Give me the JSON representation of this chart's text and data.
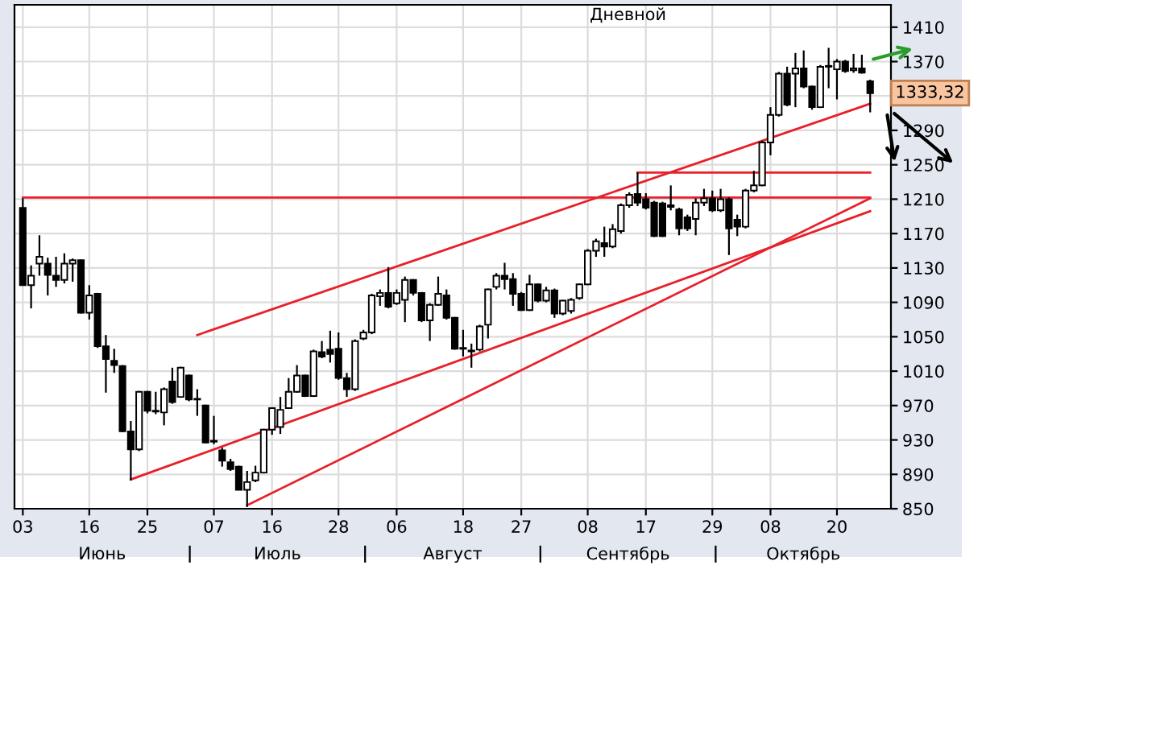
{
  "chart_data": {
    "type": "candlestick",
    "title": "Дневной",
    "categories": [
      "03",
      null,
      null,
      null,
      null,
      null,
      null,
      null,
      "16",
      null,
      null,
      null,
      null,
      null,
      null,
      "25",
      null,
      null,
      null,
      null,
      null,
      null,
      null,
      "07",
      null,
      null,
      null,
      null,
      null,
      null,
      "16",
      null,
      null,
      null,
      null,
      null,
      null,
      null,
      "28",
      null,
      null,
      null,
      null,
      null,
      null,
      "06",
      null,
      null,
      null,
      null,
      null,
      null,
      null,
      "18",
      null,
      null,
      null,
      null,
      null,
      null,
      "27",
      null,
      null,
      null,
      null,
      null,
      null,
      null,
      "08",
      null,
      null,
      null,
      null,
      null,
      null,
      "17",
      null,
      null,
      null,
      null,
      null,
      null,
      null,
      "29",
      null,
      null,
      null,
      null,
      null,
      null,
      "08",
      null,
      null,
      null,
      null,
      null,
      null,
      null,
      "20",
      null,
      null,
      null,
      null
    ],
    "ohlc": [
      [
        1200,
        1211,
        1110,
        1110
      ],
      [
        1110,
        1133,
        1083,
        1121
      ],
      [
        1135,
        1168,
        1121,
        1143
      ],
      [
        1135,
        1142,
        1098,
        1122
      ],
      [
        1121,
        1143,
        1108,
        1116
      ],
      [
        1116,
        1147,
        1112,
        1135
      ],
      [
        1135,
        1141,
        1114,
        1139
      ],
      [
        1139,
        1140,
        1077,
        1078
      ],
      [
        1078,
        1110,
        1070,
        1098
      ],
      [
        1100,
        1101,
        1037,
        1039
      ],
      [
        1039,
        1052,
        985,
        1024
      ],
      [
        1022,
        1036,
        1008,
        1017
      ],
      [
        1016,
        1017,
        939,
        940
      ],
      [
        940,
        952,
        883,
        919
      ],
      [
        919,
        987,
        917,
        986
      ],
      [
        986,
        987,
        961,
        964
      ],
      [
        963,
        986,
        960,
        964
      ],
      [
        962,
        991,
        947,
        989
      ],
      [
        998,
        1014,
        972,
        974
      ],
      [
        980,
        1015,
        979,
        1014
      ],
      [
        1005,
        1006,
        975,
        977
      ],
      [
        977,
        989,
        958,
        977
      ],
      [
        970,
        971,
        926,
        927
      ],
      [
        928,
        958,
        925,
        929
      ],
      [
        918,
        921,
        899,
        906
      ],
      [
        904,
        908,
        894,
        896
      ],
      [
        899,
        900,
        872,
        872
      ],
      [
        872,
        894,
        852,
        881
      ],
      [
        883,
        900,
        881,
        892
      ],
      [
        892,
        943,
        891,
        942
      ],
      [
        942,
        968,
        936,
        967
      ],
      [
        945,
        980,
        937,
        965
      ],
      [
        967,
        1002,
        966,
        986
      ],
      [
        986,
        1017,
        985,
        1005
      ],
      [
        1005,
        1006,
        980,
        981
      ],
      [
        981,
        1035,
        980,
        1033
      ],
      [
        1032,
        1045,
        1025,
        1027
      ],
      [
        1035,
        1057,
        1020,
        1030
      ],
      [
        1036,
        1055,
        1000,
        1002
      ],
      [
        1002,
        1008,
        980,
        989
      ],
      [
        989,
        1047,
        987,
        1045
      ],
      [
        1048,
        1058,
        1046,
        1055
      ],
      [
        1055,
        1100,
        1053,
        1098
      ],
      [
        1097,
        1105,
        1086,
        1101
      ],
      [
        1101,
        1131,
        1083,
        1085
      ],
      [
        1089,
        1105,
        1087,
        1101
      ],
      [
        1093,
        1120,
        1067,
        1116
      ],
      [
        1116,
        1117,
        1098,
        1101
      ],
      [
        1101,
        1102,
        1067,
        1069
      ],
      [
        1069,
        1089,
        1045,
        1087
      ],
      [
        1087,
        1120,
        1086,
        1100
      ],
      [
        1098,
        1105,
        1070,
        1072
      ],
      [
        1072,
        1073,
        1035,
        1036
      ],
      [
        1036,
        1058,
        1027,
        1037
      ],
      [
        1034,
        1042,
        1014,
        1033
      ],
      [
        1035,
        1064,
        1033,
        1062
      ],
      [
        1064,
        1106,
        1048,
        1105
      ],
      [
        1108,
        1124,
        1105,
        1121
      ],
      [
        1121,
        1136,
        1105,
        1117
      ],
      [
        1117,
        1124,
        1086,
        1100
      ],
      [
        1100,
        1102,
        1080,
        1081
      ],
      [
        1081,
        1122,
        1080,
        1111
      ],
      [
        1111,
        1112,
        1090,
        1092
      ],
      [
        1092,
        1108,
        1090,
        1104
      ],
      [
        1104,
        1106,
        1072,
        1077
      ],
      [
        1077,
        1093,
        1075,
        1092
      ],
      [
        1080,
        1095,
        1077,
        1093
      ],
      [
        1095,
        1112,
        1093,
        1111
      ],
      [
        1111,
        1152,
        1110,
        1150
      ],
      [
        1150,
        1164,
        1143,
        1161
      ],
      [
        1159,
        1178,
        1143,
        1155
      ],
      [
        1155,
        1181,
        1153,
        1175
      ],
      [
        1173,
        1205,
        1170,
        1203
      ],
      [
        1203,
        1218,
        1200,
        1215
      ],
      [
        1216,
        1241,
        1202,
        1206
      ],
      [
        1210,
        1217,
        1198,
        1200
      ],
      [
        1206,
        1208,
        1166,
        1167
      ],
      [
        1205,
        1207,
        1166,
        1167
      ],
      [
        1201,
        1226,
        1197,
        1203
      ],
      [
        1198,
        1200,
        1168,
        1176
      ],
      [
        1189,
        1192,
        1173,
        1176
      ],
      [
        1187,
        1211,
        1168,
        1206
      ],
      [
        1206,
        1222,
        1202,
        1211
      ],
      [
        1211,
        1220,
        1195,
        1197
      ],
      [
        1197,
        1222,
        1195,
        1210
      ],
      [
        1210,
        1212,
        1145,
        1176
      ],
      [
        1186,
        1192,
        1167,
        1178
      ],
      [
        1178,
        1222,
        1176,
        1220
      ],
      [
        1220,
        1243,
        1218,
        1226
      ],
      [
        1226,
        1278,
        1225,
        1276
      ],
      [
        1276,
        1317,
        1261,
        1308
      ],
      [
        1308,
        1358,
        1306,
        1356
      ],
      [
        1356,
        1364,
        1318,
        1320
      ],
      [
        1356,
        1380,
        1317,
        1362
      ],
      [
        1362,
        1383,
        1339,
        1341
      ],
      [
        1341,
        1342,
        1314,
        1317
      ],
      [
        1317,
        1366,
        1316,
        1364
      ],
      [
        1364,
        1386,
        1339,
        1365
      ],
      [
        1361,
        1373,
        1326,
        1370
      ],
      [
        1370,
        1372,
        1357,
        1359
      ],
      [
        1360,
        1379,
        1357,
        1362
      ],
      [
        1362,
        1378,
        1356,
        1357
      ],
      [
        1347,
        1349,
        1311,
        1333.32
      ]
    ],
    "series": [
      {
        "type": "line",
        "color": "#e8202a",
        "values": [
          null,
          null,
          null,
          null,
          null,
          null,
          null,
          null,
          null,
          null,
          null,
          null,
          null,
          null,
          null,
          null,
          null,
          null,
          null,
          null,
          null,
          1052,
          null,
          null,
          null,
          null,
          null,
          null,
          null,
          null,
          null,
          null,
          null,
          null,
          null,
          null,
          null,
          null,
          null,
          null,
          null,
          null,
          null,
          null,
          null,
          null,
          null,
          null,
          null,
          null,
          null,
          null,
          null,
          null,
          null,
          null,
          null,
          null,
          null,
          null,
          null,
          null,
          null,
          null,
          null,
          null,
          null,
          null,
          null,
          null,
          null,
          null,
          null,
          null,
          null,
          null,
          null,
          null,
          null,
          null,
          null,
          null,
          null,
          null,
          null,
          null,
          null,
          null,
          null,
          null,
          null,
          null,
          null,
          null,
          null,
          null,
          null,
          null,
          null,
          null,
          null,
          null,
          1321
        ]
      },
      {
        "type": "line",
        "color": "#e8202a",
        "values": [
          null,
          null,
          null,
          null,
          null,
          null,
          null,
          null,
          null,
          null,
          null,
          null,
          null,
          884,
          null,
          null,
          null,
          null,
          null,
          null,
          null,
          null,
          null,
          null,
          null,
          null,
          null,
          null,
          null,
          null,
          null,
          null,
          null,
          null,
          null,
          null,
          null,
          null,
          null,
          null,
          null,
          null,
          null,
          null,
          null,
          null,
          null,
          null,
          null,
          null,
          null,
          null,
          null,
          null,
          null,
          null,
          null,
          null,
          null,
          null,
          null,
          null,
          null,
          null,
          null,
          null,
          null,
          null,
          null,
          null,
          null,
          null,
          null,
          null,
          null,
          null,
          null,
          null,
          null,
          null,
          null,
          null,
          null,
          null,
          null,
          null,
          null,
          null,
          null,
          null,
          null,
          null,
          null,
          null,
          null,
          null,
          null,
          null,
          null,
          null,
          null,
          null,
          1196
        ]
      },
      {
        "type": "line",
        "color": "#e8202a",
        "values": [
          null,
          null,
          null,
          null,
          null,
          null,
          null,
          null,
          null,
          null,
          null,
          null,
          null,
          null,
          null,
          null,
          null,
          null,
          null,
          null,
          null,
          null,
          null,
          null,
          null,
          null,
          null,
          854,
          null,
          null,
          null,
          null,
          null,
          null,
          null,
          null,
          null,
          null,
          null,
          null,
          null,
          null,
          null,
          null,
          null,
          null,
          null,
          null,
          null,
          null,
          null,
          null,
          null,
          null,
          null,
          null,
          null,
          null,
          null,
          null,
          null,
          null,
          null,
          null,
          null,
          null,
          null,
          null,
          null,
          null,
          null,
          null,
          null,
          null,
          null,
          null,
          null,
          null,
          null,
          null,
          null,
          null,
          null,
          null,
          null,
          null,
          null,
          null,
          null,
          null,
          null,
          null,
          null,
          null,
          null,
          null,
          null,
          null,
          null,
          null,
          null,
          null,
          1211
        ]
      },
      {
        "type": "line",
        "color": "#e8202a",
        "values": [
          null,
          null,
          null,
          null,
          null,
          null,
          null,
          null,
          null,
          null,
          null,
          null,
          null,
          null,
          null,
          null,
          null,
          null,
          null,
          null,
          null,
          null,
          null,
          null,
          null,
          null,
          null,
          null,
          null,
          null,
          null,
          null,
          null,
          null,
          null,
          null,
          null,
          null,
          null,
          null,
          null,
          null,
          null,
          null,
          null,
          null,
          null,
          null,
          null,
          null,
          null,
          null,
          null,
          null,
          null,
          null,
          null,
          null,
          null,
          null,
          null,
          null,
          null,
          null,
          null,
          null,
          null,
          null,
          null,
          null,
          null,
          null,
          null,
          null,
          1241,
          null,
          null,
          null,
          null,
          null,
          null,
          null,
          null,
          null,
          null,
          null,
          null,
          null,
          null,
          null,
          null,
          null,
          null,
          null,
          null,
          null,
          null,
          null,
          null,
          null,
          null,
          null,
          1241
        ]
      },
      {
        "type": "line",
        "color": "#e8202a",
        "values": [
          1212,
          null,
          null,
          null,
          null,
          null,
          null,
          null,
          null,
          null,
          null,
          null,
          null,
          null,
          null,
          null,
          null,
          null,
          null,
          null,
          null,
          null,
          null,
          null,
          null,
          null,
          null,
          null,
          null,
          null,
          null,
          null,
          null,
          null,
          null,
          null,
          null,
          null,
          null,
          null,
          null,
          null,
          null,
          null,
          null,
          null,
          null,
          null,
          null,
          null,
          null,
          null,
          null,
          null,
          null,
          null,
          null,
          null,
          null,
          null,
          null,
          null,
          null,
          null,
          null,
          null,
          null,
          null,
          null,
          null,
          null,
          null,
          null,
          null,
          null,
          null,
          null,
          null,
          null,
          null,
          null,
          null,
          null,
          null,
          null,
          null,
          null,
          null,
          null,
          null,
          null,
          null,
          null,
          null,
          null,
          null,
          null,
          null,
          null,
          null,
          null,
          null,
          1212
        ]
      }
    ],
    "annotations": [
      "1333,32",
      "Июнь",
      "Июль",
      "Август",
      "Сентябрь",
      "Октябрь"
    ],
    "ylim": [
      850,
      1436
    ],
    "yticks": [
      850,
      890,
      930,
      970,
      1010,
      1050,
      1090,
      1130,
      1170,
      1210,
      1250,
      1290,
      {
        "value": 1330,
        "label": null
      },
      1370,
      1410
    ],
    "grid": true
  }
}
